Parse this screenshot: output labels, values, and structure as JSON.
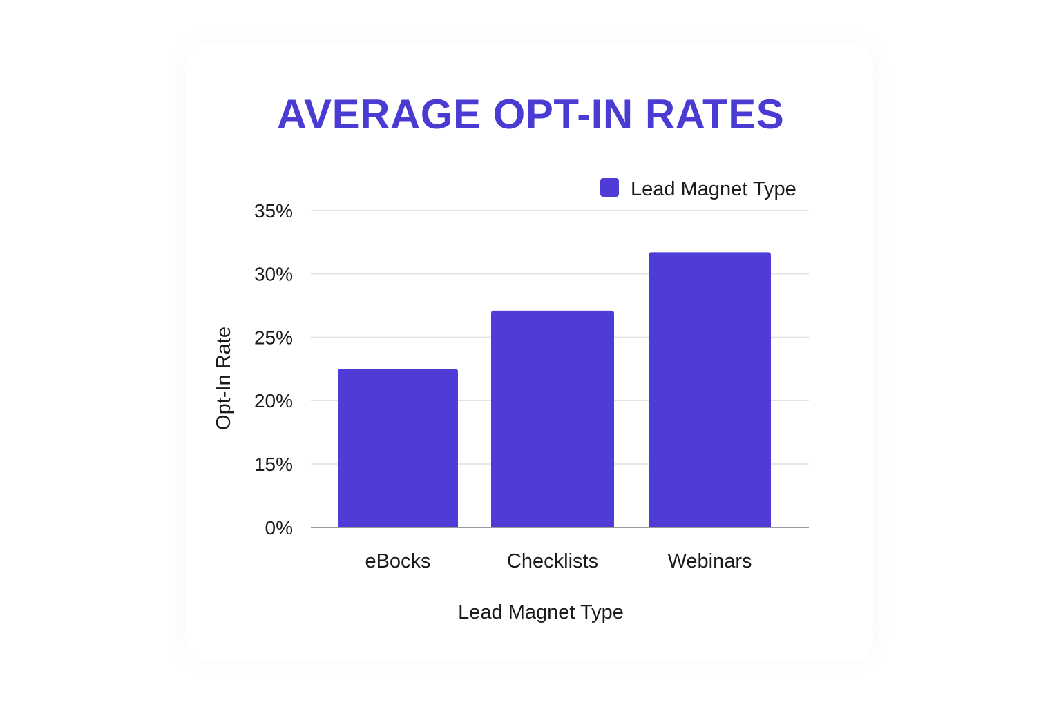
{
  "chart_data": {
    "type": "bar",
    "title": "AVERAGE OPT-IN RATES",
    "categories": [
      "eBocks",
      "Checklists",
      "Webinars"
    ],
    "series": [
      {
        "name": "Lead Magnet Type",
        "values": [
          22.5,
          27.1,
          31.7
        ]
      }
    ],
    "xlabel": "Lead Magnet Type",
    "ylabel": "Opt-In Rate",
    "y_ticks": [
      0,
      15,
      20,
      25,
      30,
      35
    ],
    "y_tick_labels": [
      "0%",
      "15%",
      "20%",
      "25%",
      "30%",
      "35%"
    ],
    "y_axis_note": "axis is broken: gap from 0% to 15% drawn as one gridline interval",
    "ylim": [
      0,
      35
    ],
    "grid": true,
    "legend_position": "top-right",
    "colors": {
      "title": "#4a3bd2",
      "bar": "#4f3bd6",
      "grid": "#e2e2e2",
      "axis": "#7a7a7a"
    }
  }
}
